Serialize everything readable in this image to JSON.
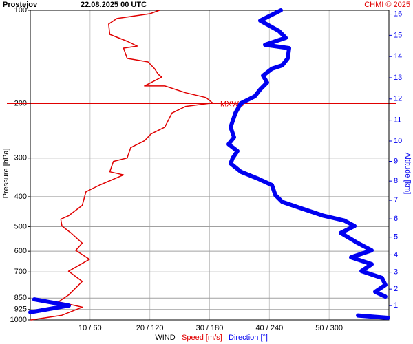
{
  "chart_data": {
    "type": "profile",
    "title": "Prostejov",
    "subtitle": "22.08.2025 00 UTC",
    "credit": "CHMI © 2025",
    "ylabel": "Pressure [hPa]",
    "y2label": "Altitude [km]",
    "xlabel": "WIND",
    "annotation": {
      "text": "MXWS",
      "pressure": 200
    },
    "ylim": [
      100,
      1000
    ],
    "ylog": true,
    "yticks": [
      100,
      200,
      300,
      400,
      500,
      600,
      700,
      850,
      925,
      1000
    ],
    "y2ticks": [
      1,
      2,
      3,
      4,
      5,
      6,
      7,
      8,
      9,
      10,
      11,
      12,
      13,
      14,
      15,
      16
    ],
    "xlim": [
      0,
      60
    ],
    "x2lim": [
      0,
      360
    ],
    "xticks": [
      {
        "value": 10,
        "label": "10 / 60"
      },
      {
        "value": 20,
        "label": "20 / 120"
      },
      {
        "value": 30,
        "label": "30 / 180"
      },
      {
        "value": 40,
        "label": "40 / 240"
      },
      {
        "value": 50,
        "label": "50 / 300"
      }
    ],
    "grid": true,
    "series": [
      {
        "name": "Speed [m/s]",
        "color": "#e00000",
        "pressure": [
          100,
          102.6,
          106.3,
          110.8,
          119.6,
          125.9,
          130.5,
          132.5,
          143,
          146.8,
          154.4,
          160.9,
          164.3,
          175.5,
          175.5,
          184.6,
          191.3,
          199.1,
          204.3,
          214.7,
          238.4,
          250.8,
          263.9,
          277.7,
          300,
          307.6,
          332.4,
          340.1,
          366.8,
          385.7,
          426.6,
          460.8,
          472.7,
          497.3,
          523.4,
          565,
          596,
          637,
          696,
          751,
          831,
          874,
          909,
          966,
          1000
        ],
        "values": [
          21.6,
          20,
          14.5,
          13.1,
          13.3,
          16.2,
          17.9,
          15.6,
          16.2,
          19.7,
          20.8,
          21.4,
          22,
          19.1,
          22.5,
          26,
          29.4,
          30.5,
          26,
          23.7,
          22.5,
          20.2,
          19.1,
          16.8,
          16.2,
          13.9,
          13.3,
          15.6,
          11.6,
          9.3,
          8.7,
          6.4,
          5.1,
          5.3,
          6.8,
          8.7,
          7.6,
          9.9,
          6.4,
          8.7,
          6.4,
          4.7,
          8.7,
          5.3,
          0.1
        ]
      },
      {
        "name": "Direction [°]",
        "color": "#0000f0",
        "axis": "x2",
        "pressure": [
          100,
          108,
          116.6,
          122.7,
          129.2,
          132.5,
          143,
          150.6,
          154.4,
          162.6,
          171.1,
          180.1,
          189.6,
          199.6,
          214.7,
          238.4,
          257.2,
          270.7,
          284.9,
          300,
          312.4,
          332.4,
          350,
          366.8,
          395,
          415.9,
          437.8,
          460.8,
          477.5,
          497.3,
          523.4,
          565,
          596,
          627.6,
          660.7,
          695.5,
          732,
          770.6,
          811.2,
          840.8,
          null,
          858.3,
          898.8,
          945,
          null,
          968,
          985
        ],
        "values": [
          251.5,
          230.8,
          249.5,
          256.4,
          235.6,
          259.8,
          258.4,
          252.9,
          242.5,
          233.6,
          237.7,
          230.8,
          225.3,
          211.4,
          205.9,
          201.1,
          204.5,
          199,
          208,
          203.2,
          201.1,
          211.4,
          228.7,
          242.5,
          246,
          252.9,
          273.6,
          294.4,
          315.1,
          325.5,
          311.6,
          328.9,
          342.7,
          322,
          342.7,
          332.4,
          353.1,
          356.5,
          346.2,
          356.5,
          null,
          4,
          38.7,
          0,
          null,
          329,
          359
        ]
      }
    ]
  }
}
